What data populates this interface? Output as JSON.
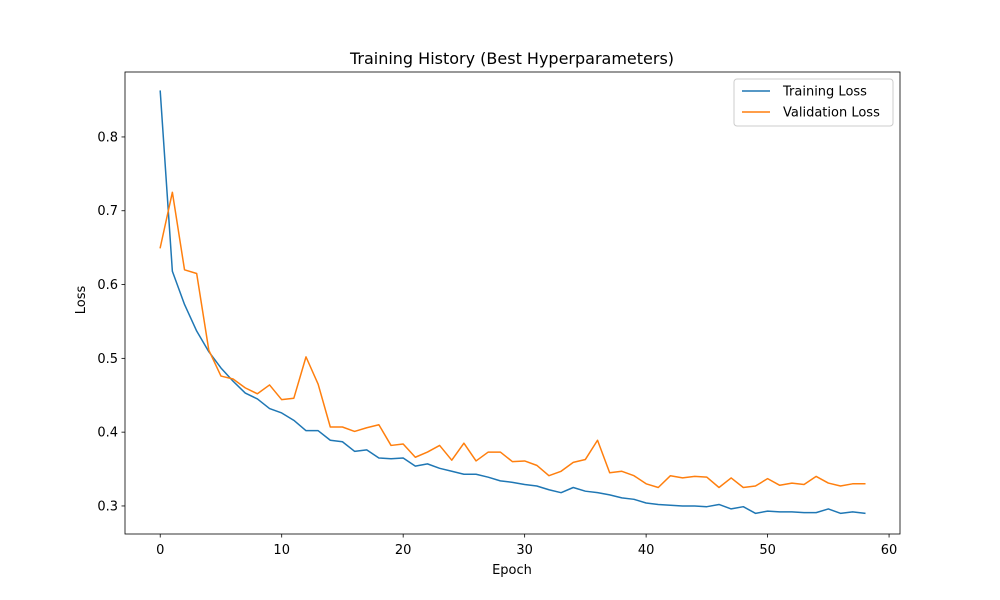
{
  "chart_data": {
    "type": "line",
    "title": "Training History (Best Hyperparameters)",
    "xlabel": "Epoch",
    "ylabel": "Loss",
    "xlim": [
      -2.9,
      60.9
    ],
    "ylim": [
      0.262,
      0.888
    ],
    "xticks": [
      0,
      10,
      20,
      30,
      40,
      50,
      60
    ],
    "yticks": [
      0.3,
      0.4,
      0.5,
      0.6,
      0.7,
      0.8
    ],
    "grid": false,
    "legend_position": "top-right",
    "x": [
      0,
      1,
      2,
      3,
      4,
      5,
      6,
      7,
      8,
      9,
      10,
      11,
      12,
      13,
      14,
      15,
      16,
      17,
      18,
      19,
      20,
      21,
      22,
      23,
      24,
      25,
      26,
      27,
      28,
      29,
      30,
      31,
      32,
      33,
      34,
      35,
      36,
      37,
      38,
      39,
      40,
      41,
      42,
      43,
      44,
      45,
      46,
      47,
      48,
      49,
      50,
      51,
      52,
      53,
      54,
      55,
      56,
      57,
      58
    ],
    "series": [
      {
        "name": "Training Loss",
        "color": "#1f77b4",
        "values": [
          0.862,
          0.618,
          0.573,
          0.537,
          0.509,
          0.487,
          0.469,
          0.453,
          0.445,
          0.432,
          0.426,
          0.416,
          0.402,
          0.402,
          0.389,
          0.387,
          0.374,
          0.376,
          0.365,
          0.364,
          0.365,
          0.354,
          0.357,
          0.351,
          0.347,
          0.343,
          0.343,
          0.339,
          0.334,
          0.332,
          0.329,
          0.327,
          0.322,
          0.318,
          0.325,
          0.32,
          0.318,
          0.315,
          0.311,
          0.309,
          0.304,
          0.302,
          0.301,
          0.3,
          0.3,
          0.299,
          0.302,
          0.296,
          0.299,
          0.29,
          0.293,
          0.292,
          0.292,
          0.291,
          0.291,
          0.296,
          0.29,
          0.292,
          0.29
        ]
      },
      {
        "name": "Validation Loss",
        "color": "#ff7f0e",
        "values": [
          0.65,
          0.725,
          0.62,
          0.615,
          0.511,
          0.476,
          0.472,
          0.46,
          0.452,
          0.464,
          0.444,
          0.446,
          0.502,
          0.465,
          0.407,
          0.407,
          0.401,
          0.406,
          0.41,
          0.382,
          0.384,
          0.366,
          0.373,
          0.382,
          0.362,
          0.385,
          0.361,
          0.373,
          0.373,
          0.36,
          0.361,
          0.355,
          0.341,
          0.347,
          0.359,
          0.363,
          0.389,
          0.345,
          0.347,
          0.341,
          0.33,
          0.325,
          0.341,
          0.338,
          0.34,
          0.339,
          0.325,
          0.338,
          0.325,
          0.327,
          0.337,
          0.328,
          0.331,
          0.329,
          0.34,
          0.331,
          0.327,
          0.33,
          0.33
        ]
      }
    ]
  }
}
